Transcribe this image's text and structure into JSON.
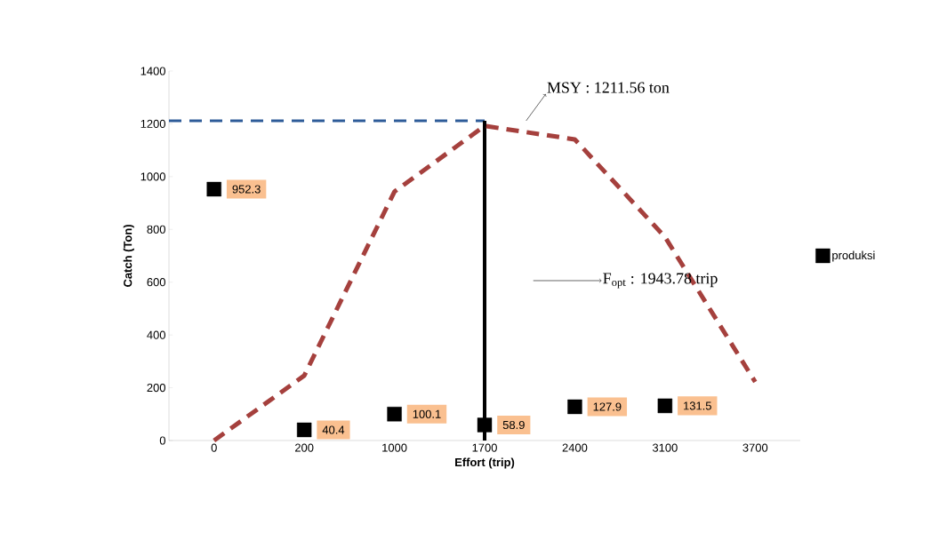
{
  "chart_data": {
    "type": "scatter",
    "xlabel": "Effort (trip)",
    "ylabel": "Catch (Ton)",
    "categories": [
      "0",
      "200",
      "1000",
      "1700",
      "2400",
      "3100",
      "3700"
    ],
    "series": [
      {
        "name": "produksi",
        "color": "#000000",
        "marker": "square",
        "data_labels": true,
        "values": [
          952.3,
          40.4,
          100.1,
          58.9,
          127.9,
          131.5,
          null
        ]
      },
      {
        "type": "line",
        "color": "#a5403d",
        "line_style": "dashed",
        "marker": "none",
        "values": [
          0,
          246,
          943,
          1192,
          1141,
          771,
          222
        ]
      }
    ],
    "ylim": [
      0,
      1400
    ],
    "yticks": [
      0,
      200,
      400,
      600,
      800,
      1000,
      1200,
      1400
    ],
    "grid": false,
    "legend": "right",
    "ref_lines": [
      {
        "axis": "y",
        "value": 1211.56,
        "color": "#2e5c99",
        "line_style": "dashed"
      },
      {
        "axis": "x",
        "value": "1700",
        "color": "#000000",
        "line_style": "solid"
      }
    ],
    "annotations": [
      "MSY : 1211.56 ton",
      "F$_{opt}$ : 1943.78 trip"
    ]
  }
}
